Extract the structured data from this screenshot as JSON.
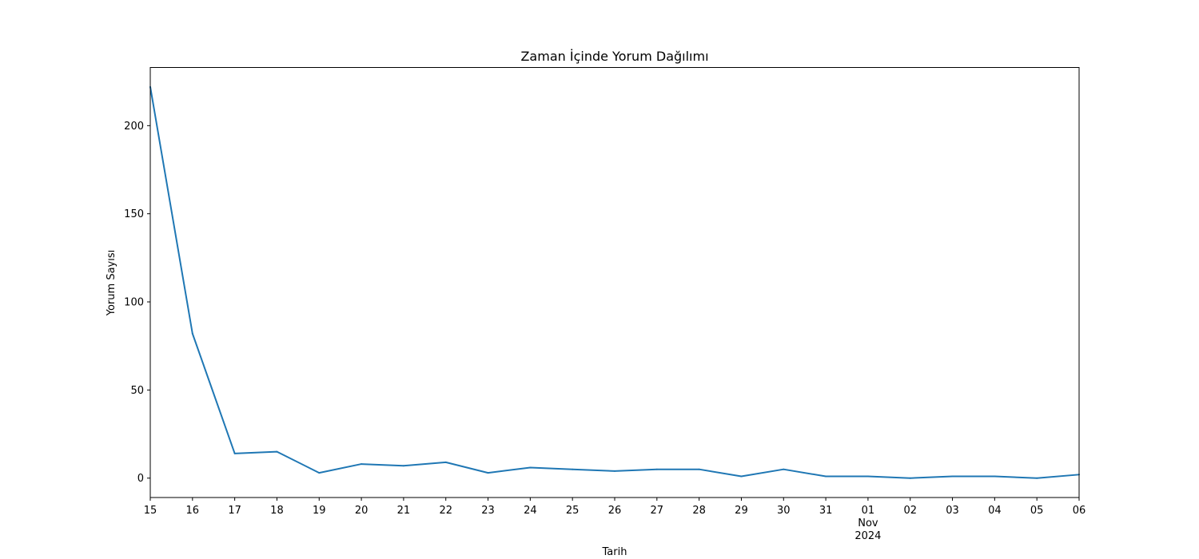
{
  "chart_data": {
    "type": "line",
    "title": "Zaman İçinde Yorum Dağılımı",
    "xlabel": "Tarih",
    "ylabel": "Yorum Sayısı",
    "x_range": [
      "2024-10-15",
      "2024-11-06"
    ],
    "ylim": [
      -11,
      233
    ],
    "y_ticks": [
      0,
      50,
      100,
      150,
      200
    ],
    "x_tick_labels": [
      "15",
      "16",
      "17",
      "18",
      "19",
      "20",
      "21",
      "22",
      "23",
      "24",
      "25",
      "26",
      "27",
      "28",
      "29",
      "30",
      "31",
      "01",
      "02",
      "03",
      "04",
      "05",
      "06"
    ],
    "x_secondary_labels": {
      "month": "Nov",
      "year": "2024"
    },
    "grid": false,
    "legend": "none",
    "series": [
      {
        "color": "#1f77b4",
        "x": [
          "2024-10-15",
          "2024-10-16",
          "2024-10-17",
          "2024-10-18",
          "2024-10-19",
          "2024-10-20",
          "2024-10-21",
          "2024-10-22",
          "2024-10-23",
          "2024-10-24",
          "2024-10-25",
          "2024-10-26",
          "2024-10-27",
          "2024-10-28",
          "2024-10-29",
          "2024-10-30",
          "2024-10-31",
          "2024-11-01",
          "2024-11-02",
          "2024-11-03",
          "2024-11-04",
          "2024-11-05",
          "2024-11-06"
        ],
        "values": [
          222,
          82,
          14,
          15,
          3,
          8,
          7,
          9,
          3,
          6,
          5,
          4,
          5,
          5,
          1,
          5,
          1,
          1,
          0,
          1,
          1,
          0,
          2
        ]
      }
    ]
  }
}
